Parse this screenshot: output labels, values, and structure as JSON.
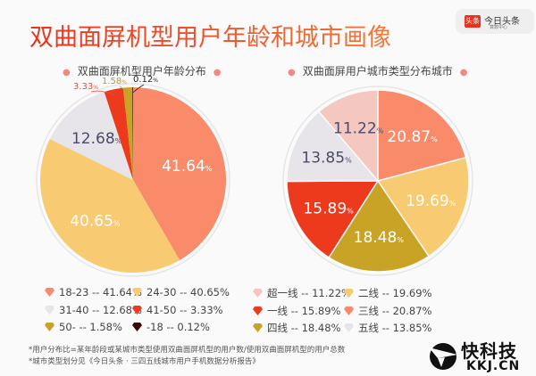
{
  "header": {
    "title": "双曲面屏机型用户年龄和城市画像",
    "logo": {
      "badge": "头条",
      "name": "今日头条",
      "sub": "算数中心"
    }
  },
  "colors": {
    "salmon": "#f98a6a",
    "yellow": "#f8cb72",
    "grey": "#e7e4ea",
    "red": "#ee3a1c",
    "gold": "#c9a326",
    "dark": "#3a0808",
    "pink": "#f4c8c0"
  },
  "chart_data": [
    {
      "type": "pie",
      "title": "双曲面屏机型用户年龄分布",
      "categories": [
        "18-23",
        "24-30",
        "31-40",
        "41-50",
        "50-",
        "-18"
      ],
      "values": [
        41.64,
        40.65,
        12.68,
        3.33,
        1.58,
        0.12
      ],
      "labels": [
        "41.64",
        "40.65",
        "12.68",
        "3.33",
        "1.58",
        "0.12"
      ],
      "colors": [
        "#f98a6a",
        "#f8cb72",
        "#e7e4ea",
        "#ee3a1c",
        "#c9a326",
        "#3a0808"
      ],
      "label_colors": [
        "#ffffff",
        "#ffffff",
        "#4a4a6a",
        "#e8503a",
        "#b89a30",
        "#222222"
      ],
      "legend": [
        {
          "text": "18-23 -- 41.64%",
          "color": "#f98a6a"
        },
        {
          "text": "24-30 -- 40.65%",
          "color": "#f8cb72"
        },
        {
          "text": "31-40 -- 12.68%",
          "color": "#e7e4ea"
        },
        {
          "text": "41-50 -- 3.33%",
          "color": "#ee3a1c"
        },
        {
          "text": "50-     -- 1.58%",
          "color": "#c9a326"
        },
        {
          "text": "-18      -- 0.12%",
          "color": "#3a0808"
        }
      ],
      "legend_placement": "bottom"
    },
    {
      "type": "pie",
      "title": "双曲面屏用户城市类型分布城市",
      "categories": [
        "三线",
        "二线",
        "四线",
        "一线",
        "五线",
        "超一线"
      ],
      "values": [
        20.87,
        19.69,
        18.48,
        15.89,
        13.85,
        11.22
      ],
      "labels": [
        "20.87",
        "19.69",
        "18.48",
        "15.89",
        "13.85",
        "11.22"
      ],
      "colors": [
        "#f98a6a",
        "#f8cb72",
        "#c9a326",
        "#ee3a1c",
        "#e7e4ea",
        "#f4c8c0"
      ],
      "label_colors": [
        "#ffffff",
        "#ffffff",
        "#ffffff",
        "#ffffff",
        "#4a4a6a",
        "#4a4a6a"
      ],
      "legend": [
        {
          "text": "超一线 -- 11.22%",
          "color": "#f4c8c0"
        },
        {
          "text": "二线 -- 19.69%",
          "color": "#f8cb72"
        },
        {
          "text": "一线     -- 15.89%",
          "color": "#ee3a1c"
        },
        {
          "text": "三线 -- 20.87%",
          "color": "#f98a6a"
        },
        {
          "text": "四线     -- 18.48%",
          "color": "#c9a326"
        },
        {
          "text": "五线 -- 13.85%",
          "color": "#e7e4ea"
        }
      ],
      "legend_placement": "bottom"
    }
  ],
  "percent_sign": "%",
  "notes": [
    "*用户分布比=某年龄段或某城市类型使用双曲面屏机型的用户数/使用双曲面屏机型的用户总数",
    "*城市类型划分见《今日头条 · 三四五线城市用户手机数据分析报告》"
  ],
  "watermark": {
    "cn": "快科技",
    "en": "KKJ.CN"
  }
}
